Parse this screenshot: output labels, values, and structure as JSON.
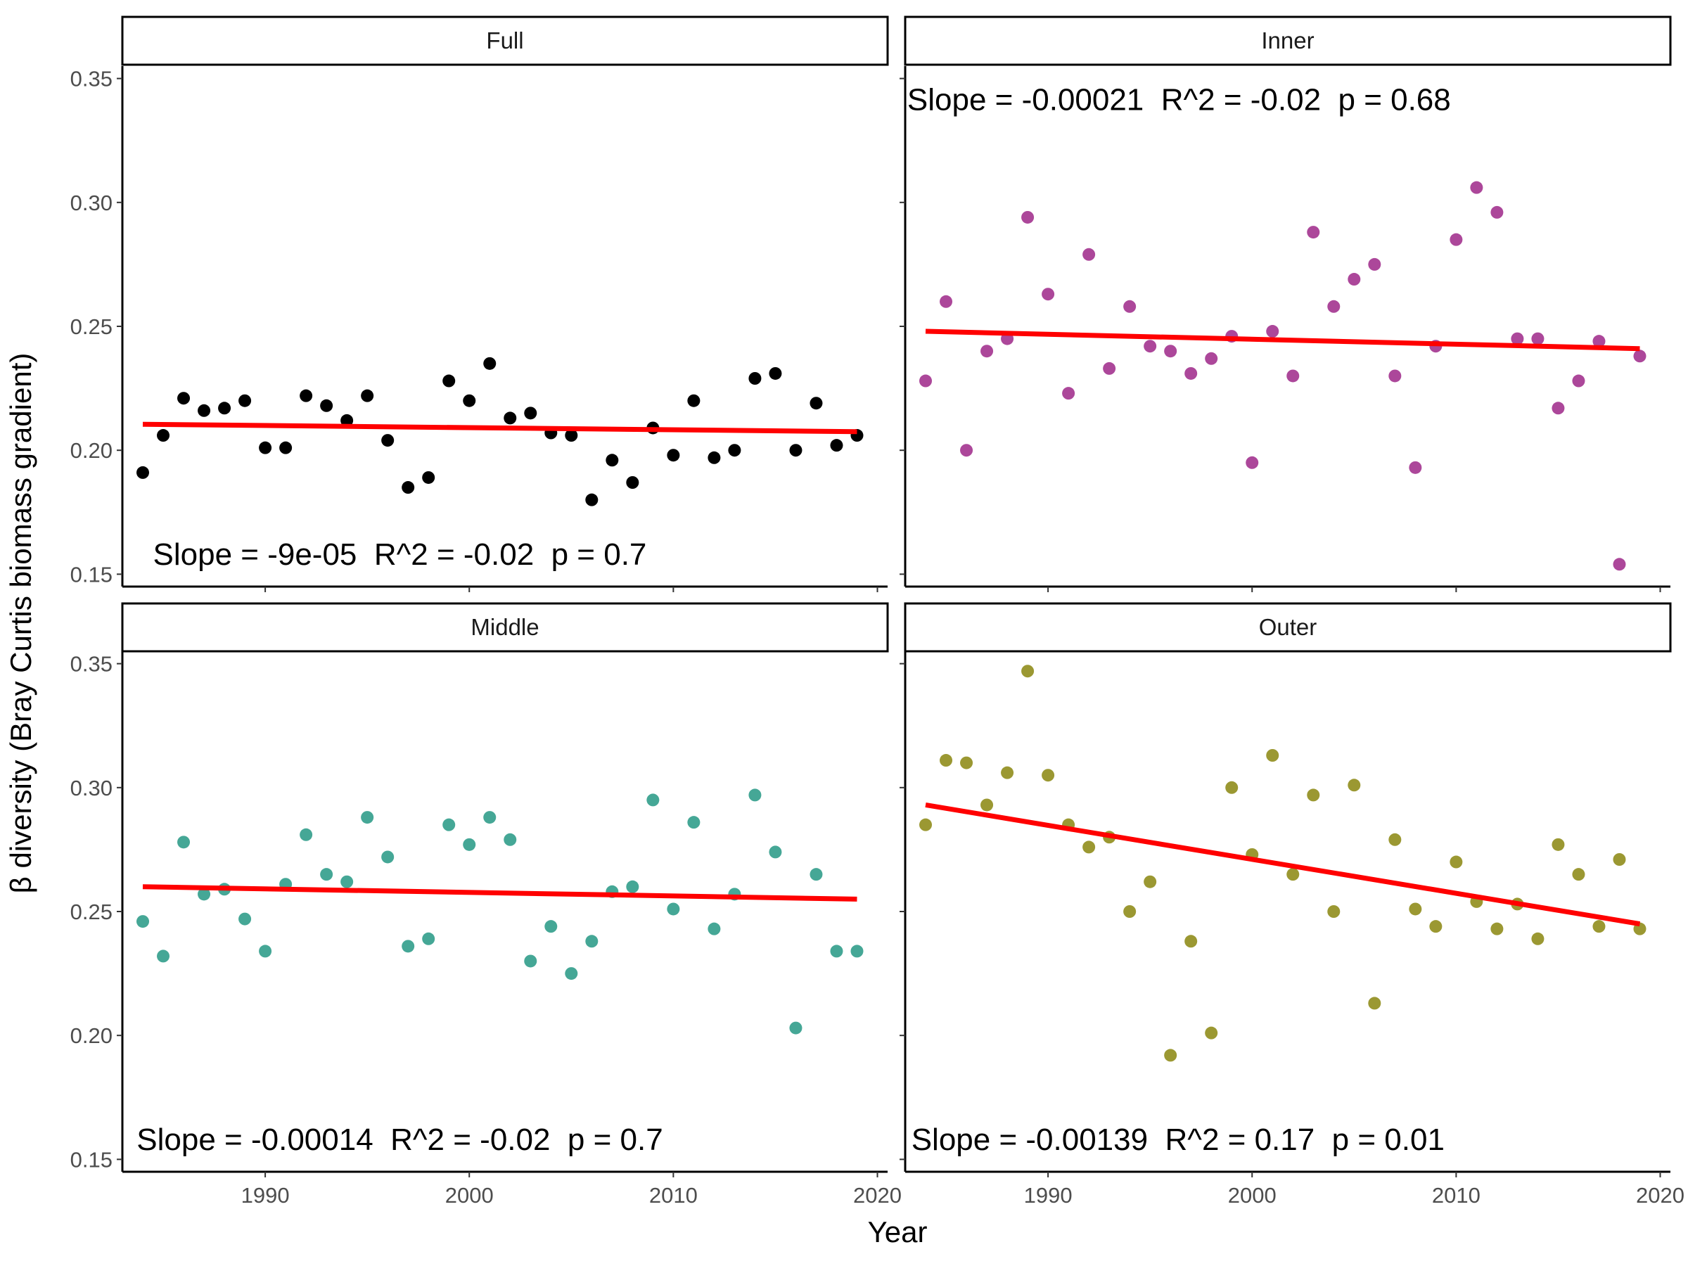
{
  "chart_data": {
    "type": "scatter",
    "xlabel": "Year",
    "ylabel": "β diversity (Bray Curtis biomass gradient)",
    "xlim": [
      1983,
      2020.5
    ],
    "ylim": [
      0.145,
      0.355
    ],
    "x_ticks": [
      {
        "value": 1990,
        "label": "1990"
      },
      {
        "value": 2000,
        "label": "2000"
      },
      {
        "value": 2010,
        "label": "2010"
      },
      {
        "value": 2020,
        "label": "2020"
      }
    ],
    "y_ticks": [
      {
        "value": 0.15,
        "label": "0.15"
      },
      {
        "value": 0.2,
        "label": "0.20"
      },
      {
        "value": 0.25,
        "label": "0.25"
      },
      {
        "value": 0.3,
        "label": "0.30"
      },
      {
        "value": 0.35,
        "label": "0.35"
      }
    ],
    "fit_color": "#ff0000",
    "grid": false,
    "panels": [
      {
        "name": "Full",
        "color": "#000000",
        "annotation": "Slope = -9e-05  R^2 = -0.02  p = 0.7",
        "annotation_x": 1984.5,
        "annotation_y": 0.158,
        "fit": [
          [
            1984,
            0.2105
          ],
          [
            2019,
            0.2075
          ]
        ],
        "x": [
          1984,
          1985,
          1986,
          1987,
          1988,
          1989,
          1990,
          1991,
          1992,
          1993,
          1994,
          1995,
          1996,
          1997,
          1998,
          1999,
          2000,
          2001,
          2002,
          2003,
          2004,
          2005,
          2006,
          2007,
          2008,
          2009,
          2010,
          2011,
          2012,
          2013,
          2014,
          2015,
          2016,
          2017,
          2018,
          2019
        ],
        "y": [
          0.191,
          0.206,
          0.221,
          0.216,
          0.217,
          0.22,
          0.201,
          0.201,
          0.222,
          0.218,
          0.212,
          0.222,
          0.204,
          0.185,
          0.189,
          0.228,
          0.22,
          0.235,
          0.213,
          0.215,
          0.207,
          0.206,
          0.18,
          0.196,
          0.187,
          0.209,
          0.198,
          0.22,
          0.197,
          0.2,
          0.229,
          0.231,
          0.2,
          0.219,
          0.202,
          0.206
        ]
      },
      {
        "name": "Inner",
        "color": "#ac479a",
        "annotation": "Slope = -0.00021  R^2 = -0.02  p = 0.68",
        "annotation_x": 1983.1,
        "annotation_y": 0.3415,
        "fit": [
          [
            1984,
            0.248
          ],
          [
            2019,
            0.241
          ]
        ],
        "x": [
          1984,
          1985,
          1986,
          1987,
          1988,
          1989,
          1990,
          1991,
          1992,
          1993,
          1994,
          1995,
          1996,
          1997,
          1998,
          1999,
          2000,
          2001,
          2002,
          2003,
          2004,
          2005,
          2006,
          2007,
          2008,
          2009,
          2010,
          2011,
          2012,
          2013,
          2014,
          2015,
          2016,
          2017,
          2018,
          2019
        ],
        "y": [
          0.228,
          0.26,
          0.2,
          0.24,
          0.245,
          0.294,
          0.263,
          0.223,
          0.279,
          0.233,
          0.258,
          0.242,
          0.24,
          0.231,
          0.237,
          0.246,
          0.195,
          0.248,
          0.23,
          0.288,
          0.258,
          0.269,
          0.275,
          0.23,
          0.193,
          0.242,
          0.285,
          0.306,
          0.296,
          0.245,
          0.245,
          0.217,
          0.228,
          0.244,
          0.154,
          0.238
        ]
      },
      {
        "name": "Middle",
        "color": "#45a796",
        "annotation": "Slope = -0.00014  R^2 = -0.02  p = 0.7",
        "annotation_x": 1983.7,
        "annotation_y": 0.158,
        "fit": [
          [
            1984,
            0.26
          ],
          [
            2019,
            0.255
          ]
        ],
        "x": [
          1984,
          1985,
          1986,
          1987,
          1988,
          1989,
          1990,
          1991,
          1992,
          1993,
          1994,
          1995,
          1996,
          1997,
          1998,
          1999,
          2000,
          2001,
          2002,
          2003,
          2004,
          2005,
          2006,
          2007,
          2008,
          2009,
          2010,
          2011,
          2012,
          2013,
          2014,
          2015,
          2016,
          2017,
          2018,
          2019
        ],
        "y": [
          0.246,
          0.232,
          0.278,
          0.257,
          0.259,
          0.247,
          0.234,
          0.261,
          0.281,
          0.265,
          0.262,
          0.288,
          0.272,
          0.236,
          0.239,
          0.285,
          0.277,
          0.288,
          0.279,
          0.23,
          0.244,
          0.225,
          0.238,
          0.258,
          0.26,
          0.295,
          0.251,
          0.286,
          0.243,
          0.257,
          0.297,
          0.274,
          0.203,
          0.265,
          0.234,
          0.234
        ]
      },
      {
        "name": "Outer",
        "color": "#9b9832",
        "annotation": "Slope = -0.00139  R^2 = 0.17  p = 0.01",
        "annotation_x": 1983.3,
        "annotation_y": 0.158,
        "fit": [
          [
            1984,
            0.293
          ],
          [
            2019,
            0.245
          ]
        ],
        "x": [
          1984,
          1985,
          1986,
          1987,
          1988,
          1989,
          1990,
          1991,
          1992,
          1993,
          1994,
          1995,
          1996,
          1997,
          1998,
          1999,
          2000,
          2001,
          2002,
          2003,
          2004,
          2005,
          2006,
          2007,
          2008,
          2009,
          2010,
          2011,
          2012,
          2013,
          2014,
          2015,
          2016,
          2017,
          2018,
          2019
        ],
        "y": [
          0.285,
          0.311,
          0.31,
          0.293,
          0.306,
          0.347,
          0.305,
          0.285,
          0.276,
          0.28,
          0.25,
          0.262,
          0.192,
          0.238,
          0.201,
          0.3,
          0.273,
          0.313,
          0.265,
          0.297,
          0.25,
          0.301,
          0.213,
          0.279,
          0.251,
          0.244,
          0.27,
          0.254,
          0.243,
          0.253,
          0.239,
          0.277,
          0.265,
          0.244,
          0.271,
          0.243
        ]
      }
    ]
  }
}
